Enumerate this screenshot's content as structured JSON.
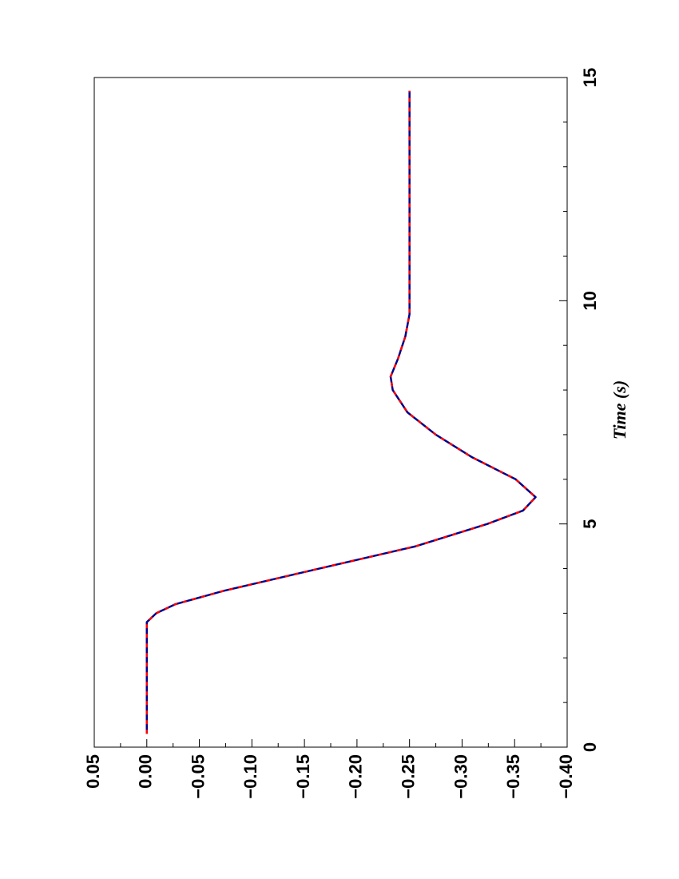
{
  "chart_data": {
    "type": "line",
    "x_label": "Time (s)",
    "x": [
      0.3,
      2.8,
      3.0,
      3.2,
      3.5,
      4.0,
      4.5,
      5.0,
      5.3,
      5.6,
      6.0,
      6.5,
      7.0,
      7.5,
      8.0,
      8.3,
      8.7,
      9.2,
      9.7,
      14.7
    ],
    "series": [
      {
        "color": "#00008b",
        "values": [
          0.0,
          0.0,
          -0.009,
          -0.027,
          -0.073,
          -0.164,
          -0.256,
          -0.324,
          -0.358,
          -0.37,
          -0.351,
          -0.309,
          -0.275,
          -0.248,
          -0.234,
          -0.232,
          -0.239,
          -0.246,
          -0.25,
          -0.25
        ]
      },
      {
        "color": "#ff0000",
        "dash": "5,7",
        "values": [
          0.0,
          0.0,
          -0.009,
          -0.027,
          -0.073,
          -0.164,
          -0.256,
          -0.324,
          -0.358,
          -0.37,
          -0.351,
          -0.309,
          -0.275,
          -0.248,
          -0.234,
          -0.232,
          -0.239,
          -0.246,
          -0.25,
          -0.25
        ]
      }
    ],
    "xlim": [
      0,
      15
    ],
    "xticks": [
      0,
      5,
      10,
      15
    ],
    "xminorticks": [
      1,
      2,
      3,
      4,
      6,
      7,
      8,
      9,
      11,
      12,
      13,
      14
    ],
    "ylim": [
      -0.4,
      0.05
    ],
    "yticks": [
      {
        "value": 0.05,
        "label": "0.05"
      },
      {
        "value": 0,
        "label": "0.00"
      },
      {
        "value": -0.05,
        "label": "−0.05"
      },
      {
        "value": -0.1,
        "label": "−0.10"
      },
      {
        "value": -0.15,
        "label": "−0.15"
      },
      {
        "value": -0.2,
        "label": "−0.20"
      },
      {
        "value": -0.25,
        "label": "−0.25"
      },
      {
        "value": -0.3,
        "label": "−0.30"
      },
      {
        "value": -0.35,
        "label": "−0.35"
      },
      {
        "value": -0.4,
        "label": "−0.40"
      }
    ],
    "yminorticks": [
      0.025,
      -0.025,
      -0.075,
      -0.125,
      -0.175,
      -0.225,
      -0.275,
      -0.325,
      -0.375
    ]
  }
}
